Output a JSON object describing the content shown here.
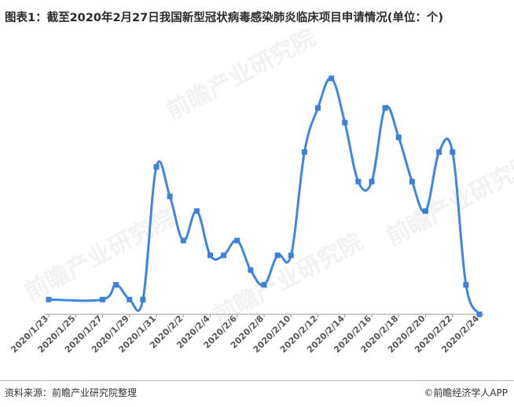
{
  "title": "图表1：截至2020年2月27日我国新型冠状病毒感染肺炎临床项目申请情况(单位：个)",
  "footer": {
    "source": "资料来源：前瞻产业研究院整理",
    "brand": "©前瞻经济学人APP"
  },
  "watermark": "前瞻产业研究院",
  "colors": {
    "line": "#3f86df",
    "marker": "#3d7fd9",
    "axis": "#999999",
    "tick_text": "#555555"
  },
  "chart_data": {
    "type": "line",
    "title": "图表1：截至2020年2月27日我国新型冠状病毒感染肺炎临床项目申请情况(单位：个)",
    "xlabel": "",
    "ylabel": "",
    "grid": false,
    "legend": "none",
    "x": [
      "2020/1/23",
      "2020/1/27",
      "2020/1/28",
      "2020/1/29",
      "2020/1/30",
      "2020/1/31",
      "2020/2/1",
      "2020/2/2",
      "2020/2/3",
      "2020/2/4",
      "2020/2/5",
      "2020/2/6",
      "2020/2/7",
      "2020/2/8",
      "2020/2/9",
      "2020/2/10",
      "2020/2/11",
      "2020/2/12",
      "2020/2/13",
      "2020/2/14",
      "2020/2/15",
      "2020/2/16",
      "2020/2/17",
      "2020/2/18",
      "2020/2/19",
      "2020/2/20",
      "2020/2/21",
      "2020/2/22",
      "2020/2/23",
      "2020/2/24"
    ],
    "values": [
      1,
      1,
      2,
      1,
      1,
      10,
      8,
      5,
      7,
      4,
      4,
      5,
      3,
      2,
      4,
      4,
      11,
      14,
      16,
      13,
      9,
      9,
      14,
      12,
      9,
      7,
      11,
      11,
      2,
      0
    ],
    "tick_labels": [
      "2020/1/23",
      "2020/1/25",
      "2020/1/27",
      "2020/1/29",
      "2020/1/31",
      "2020/2/2",
      "2020/2/4",
      "2020/2/6",
      "2020/2/8",
      "2020/2/10",
      "2020/2/12",
      "2020/2/14",
      "2020/2/16",
      "2020/2/18",
      "2020/2/20",
      "2020/2/22",
      "2020/2/24"
    ],
    "x_range": [
      "2020/1/23",
      "2020/2/24"
    ],
    "ylim": [
      0,
      17
    ]
  }
}
